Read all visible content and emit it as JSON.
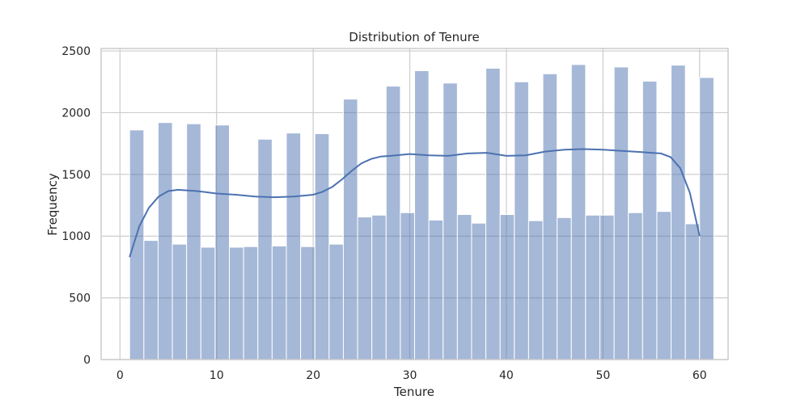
{
  "chart_data": {
    "type": "bar",
    "subtype": "histogram",
    "title": "Distribution of Tenure",
    "xlabel": "Tenure",
    "ylabel": "Frequency",
    "xlim": [
      -1.95,
      62.95
    ],
    "ylim": [
      0,
      2520
    ],
    "xticks": [
      0,
      10,
      20,
      30,
      40,
      50,
      60
    ],
    "yticks": [
      0,
      500,
      1000,
      1500,
      2000,
      2500
    ],
    "grid": true,
    "bar_color": "#4c72b0",
    "bins": {
      "start": 1,
      "width": 1.475,
      "values": [
        1860,
        965,
        1920,
        935,
        1910,
        910,
        1900,
        910,
        915,
        1785,
        920,
        1835,
        915,
        1830,
        935,
        2110,
        1155,
        1170,
        2215,
        1190,
        2340,
        1130,
        2240,
        1175,
        1105,
        2360,
        1175,
        2250,
        1125,
        2315,
        1150,
        2390,
        1170,
        1170,
        2370,
        1190,
        2255,
        1200,
        2385,
        1100,
        2285,
        0
      ]
    },
    "kde": {
      "x": [
        1,
        2,
        3,
        4,
        5,
        6,
        8,
        10,
        12,
        14,
        16,
        18,
        20,
        21,
        22,
        23,
        24,
        25,
        26,
        27,
        28,
        30,
        32,
        34,
        36,
        38,
        40,
        42,
        44,
        46,
        48,
        50,
        52,
        54,
        55,
        56,
        57,
        58,
        59,
        60
      ],
      "y": [
        830,
        1080,
        1230,
        1320,
        1365,
        1375,
        1365,
        1345,
        1335,
        1320,
        1315,
        1320,
        1335,
        1360,
        1400,
        1460,
        1530,
        1590,
        1625,
        1645,
        1650,
        1665,
        1655,
        1650,
        1670,
        1675,
        1650,
        1655,
        1685,
        1700,
        1705,
        1700,
        1690,
        1680,
        1675,
        1670,
        1640,
        1550,
        1350,
        1000
      ]
    }
  }
}
